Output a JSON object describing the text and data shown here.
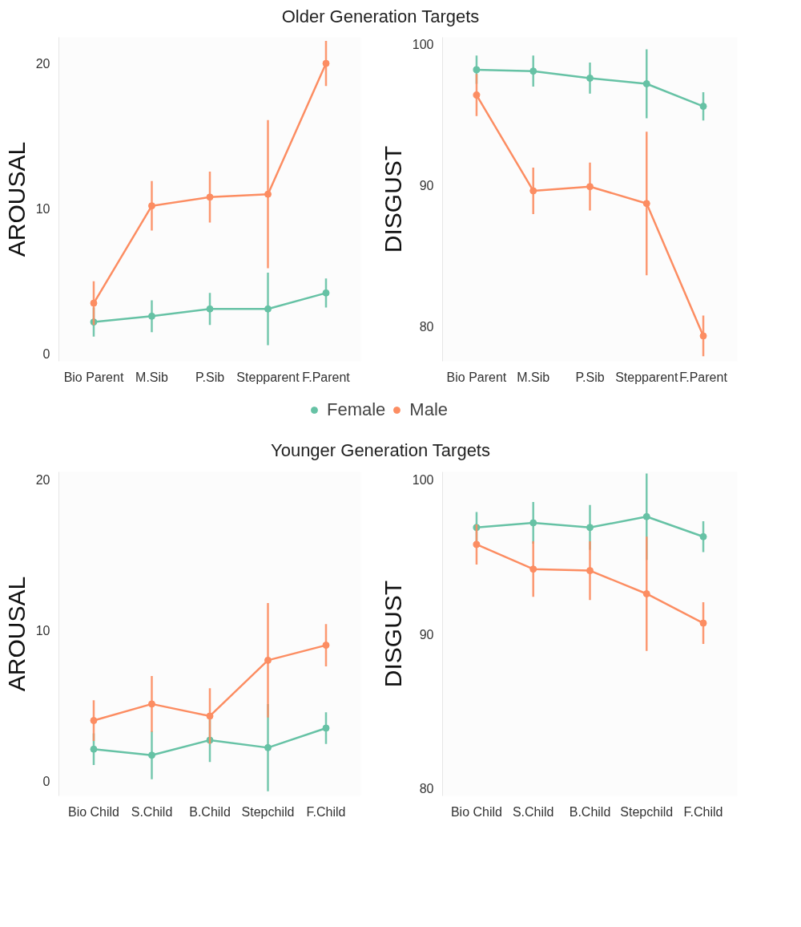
{
  "chart_data": [
    {
      "type": "line",
      "title": "Older Generation Targets",
      "ylabel": "AROUSAL",
      "categories": [
        "Bio Parent",
        "M.Sib",
        "P.Sib",
        "Stepparent",
        "F.Parent"
      ],
      "ylim": [
        -0.5,
        21.8
      ],
      "yticks": [
        0,
        10,
        20
      ],
      "grid": false,
      "legend": "bottom",
      "marker": "circle",
      "series": [
        {
          "name": "Female",
          "color": "#66c2a5",
          "values": [
            2.2,
            2.6,
            3.1,
            3.1,
            4.2
          ],
          "errors": [
            1.0,
            1.1,
            1.1,
            2.5,
            1.0
          ]
        },
        {
          "name": "Male",
          "color": "#fc8d62",
          "values": [
            3.5,
            10.2,
            10.8,
            11.0,
            20.0
          ],
          "errors": [
            1.5,
            1.7,
            1.75,
            5.1,
            1.55
          ]
        }
      ]
    },
    {
      "type": "line",
      "ylabel": "DISGUST",
      "categories": [
        "Bio Parent",
        "M.Sib",
        "P.Sib",
        "Stepparent",
        "F.Parent"
      ],
      "ylim": [
        77.5,
        100.5
      ],
      "yticks": [
        80,
        90,
        100
      ],
      "grid": false,
      "marker": "circle",
      "series": [
        {
          "color": "#66c2a5",
          "values": [
            98.2,
            98.1,
            97.6,
            97.2,
            95.6
          ],
          "errors": [
            1.0,
            1.1,
            1.1,
            2.45,
            1.0
          ]
        },
        {
          "color": "#fc8d62",
          "values": [
            96.4,
            89.6,
            89.9,
            88.7,
            79.3
          ],
          "errors": [
            1.5,
            1.65,
            1.7,
            5.1,
            1.45
          ]
        }
      ]
    },
    {
      "type": "line",
      "title": "Younger Generation Targets",
      "ylabel": "AROUSAL",
      "categories": [
        "Bio Child",
        "S.Child",
        "B.Child",
        "Stepchild",
        "F.Child"
      ],
      "ylim": [
        -1,
        20.5
      ],
      "yticks": [
        0,
        10,
        20
      ],
      "grid": false,
      "marker": "circle",
      "series": [
        {
          "color": "#66c2a5",
          "values": [
            2.1,
            1.7,
            2.7,
            2.2,
            3.5
          ],
          "errors": [
            1.05,
            1.6,
            1.45,
            2.9,
            1.05
          ]
        },
        {
          "color": "#fc8d62",
          "values": [
            4.0,
            5.1,
            4.3,
            8.0,
            9.0
          ],
          "errors": [
            1.35,
            1.85,
            1.85,
            3.8,
            1.4
          ]
        }
      ]
    },
    {
      "type": "line",
      "ylabel": "DISGUST",
      "categories": [
        "Bio Child",
        "S.Child",
        "B.Child",
        "Stepchild",
        "F.Child"
      ],
      "ylim": [
        79.5,
        100.5
      ],
      "yticks": [
        80,
        90,
        100
      ],
      "grid": false,
      "marker": "circle",
      "series": [
        {
          "color": "#66c2a5",
          "values": [
            96.9,
            97.2,
            96.9,
            97.6,
            96.3
          ],
          "errors": [
            1.0,
            1.35,
            1.45,
            2.8,
            1.0
          ]
        },
        {
          "color": "#fc8d62",
          "values": [
            95.8,
            94.2,
            94.1,
            92.6,
            90.7
          ],
          "errors": [
            1.3,
            1.8,
            1.9,
            3.7,
            1.35
          ]
        }
      ]
    }
  ]
}
